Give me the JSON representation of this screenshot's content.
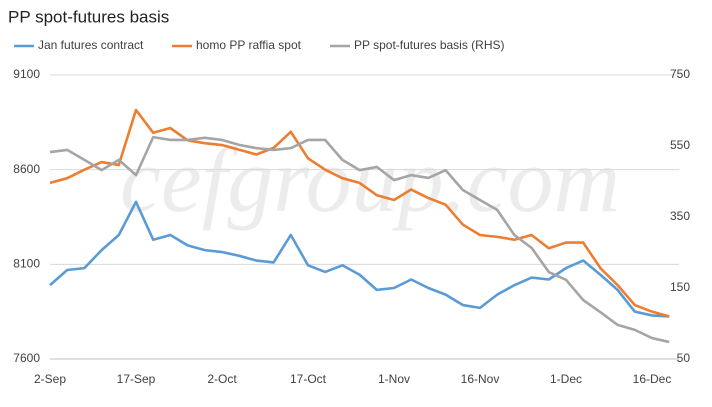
{
  "chart_data": {
    "type": "line",
    "title": "PP spot-futures basis",
    "watermark": "cefgroup.com",
    "categories": [
      "2-Sep",
      null,
      null,
      null,
      null,
      "17-Sep",
      null,
      null,
      null,
      null,
      "2-Oct",
      null,
      null,
      null,
      null,
      "17-Oct",
      null,
      null,
      null,
      null,
      "1-Nov",
      null,
      null,
      null,
      null,
      "16-Nov",
      null,
      null,
      null,
      null,
      "1-Dec",
      null,
      null,
      null,
      null,
      "16-Dec",
      null
    ],
    "ylim": [
      7600,
      9100
    ],
    "yticks": [
      7600,
      8100,
      8600,
      9100
    ],
    "y2lim": [
      -50,
      750
    ],
    "y2ticks": [
      -50,
      150,
      350,
      550,
      750
    ],
    "grid": true,
    "legend": "top",
    "series": [
      {
        "name": "Jan futures contract",
        "color": "#5b9bd5",
        "values": [
          7990,
          8070,
          8080,
          8175,
          8255,
          8430,
          8230,
          8255,
          8200,
          8175,
          8165,
          8145,
          8120,
          8110,
          8255,
          8095,
          8060,
          8095,
          8045,
          7965,
          7975,
          8020,
          7975,
          7940,
          7885,
          7870,
          7940,
          7990,
          8030,
          8020,
          8080,
          8120,
          8045,
          7965,
          7850,
          7830,
          7825
        ]
      },
      {
        "name": "homo PP raffia spot",
        "color": "#ed7d31",
        "values": [
          8530,
          8555,
          8600,
          8640,
          8625,
          8915,
          8795,
          8820,
          8755,
          8740,
          8730,
          8705,
          8680,
          8715,
          8800,
          8660,
          8600,
          8555,
          8530,
          8465,
          8440,
          8495,
          8450,
          8415,
          8310,
          8255,
          8245,
          8230,
          8255,
          8185,
          8215,
          8215,
          8080,
          7990,
          7885,
          7850,
          7825
        ]
      },
      {
        "name": "PP spot-futures basis (RHS)",
        "color": "#a5a5a5",
        "axis": "y2",
        "values": [
          533,
          539,
          511,
          482,
          511,
          468,
          575,
          567,
          567,
          573,
          567,
          553,
          544,
          539,
          544,
          567,
          567,
          511,
          482,
          491,
          454,
          468,
          460,
          482,
          426,
          398,
          370,
          299,
          263,
          195,
          173,
          116,
          82,
          46,
          32,
          9,
          -2
        ]
      }
    ]
  }
}
